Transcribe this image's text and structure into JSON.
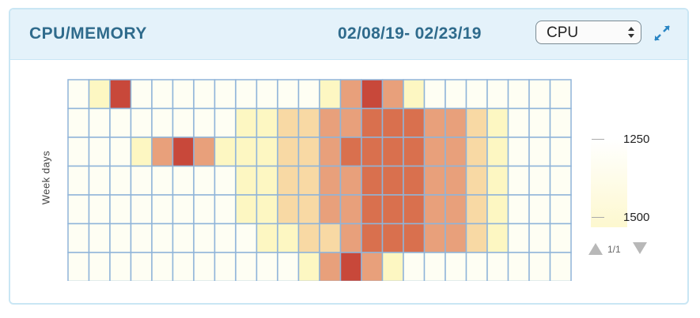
{
  "widget": {
    "title": "CPU/MEMORY",
    "date_range": "02/08/19- 02/23/19",
    "metric_select": {
      "value": "CPU"
    },
    "expand_icon": "expand-arrows-icon"
  },
  "colors": {
    "accent": "#2f6b8c",
    "header_bg": "#e4f2fa",
    "cell_border": "#8fb4d9",
    "scale": [
      "#fefef3",
      "#fdf7c2",
      "#f8d9a4",
      "#e8a07b",
      "#d9704e",
      "#c8483a"
    ]
  },
  "legend": {
    "labels": [
      "1250",
      "1500"
    ],
    "pager": {
      "text": "1/1",
      "prev_icon": "triangle-up-icon",
      "next_icon": "triangle-down-icon"
    }
  },
  "chart_data": {
    "type": "heatmap",
    "ylabel": "Week days",
    "rows": 7,
    "cols": 24,
    "scale_levels": "0 = lightest cream, 5 = darkest red",
    "values": [
      [
        0,
        1,
        5,
        0,
        0,
        0,
        0,
        0,
        0,
        0,
        0,
        0,
        1,
        3,
        5,
        3,
        1,
        0,
        0,
        0,
        0,
        0,
        0,
        0
      ],
      [
        0,
        0,
        0,
        0,
        0,
        0,
        0,
        0,
        1,
        1,
        2,
        2,
        3,
        3,
        4,
        4,
        4,
        3,
        3,
        2,
        1,
        0,
        0,
        0
      ],
      [
        0,
        0,
        0,
        1,
        3,
        5,
        3,
        1,
        1,
        1,
        2,
        2,
        3,
        4,
        4,
        4,
        4,
        3,
        3,
        2,
        1,
        0,
        0,
        0
      ],
      [
        0,
        0,
        0,
        0,
        0,
        0,
        0,
        0,
        1,
        1,
        2,
        2,
        3,
        3,
        4,
        4,
        4,
        3,
        3,
        2,
        1,
        0,
        0,
        0
      ],
      [
        0,
        0,
        0,
        0,
        0,
        0,
        0,
        0,
        1,
        1,
        2,
        2,
        3,
        3,
        4,
        4,
        4,
        3,
        3,
        2,
        1,
        0,
        0,
        0
      ],
      [
        0,
        0,
        0,
        0,
        0,
        0,
        0,
        0,
        0,
        1,
        1,
        2,
        2,
        3,
        4,
        4,
        4,
        3,
        3,
        2,
        1,
        0,
        0,
        0
      ],
      [
        0,
        0,
        0,
        0,
        0,
        0,
        0,
        0,
        0,
        0,
        0,
        1,
        3,
        5,
        3,
        1,
        0,
        0,
        0,
        0,
        0,
        0,
        0,
        0
      ]
    ]
  }
}
